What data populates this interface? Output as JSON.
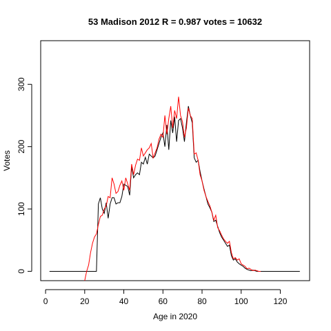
{
  "chart_data": {
    "type": "line",
    "title": "53 Madison 2012 R = 0.987 votes = 10632",
    "xlabel": "Age in 2020",
    "ylabel": "Votes",
    "xlim": [
      -2.5,
      135
    ],
    "ylim": [
      -15,
      370
    ],
    "xticks": [
      0,
      20,
      40,
      60,
      80,
      100,
      120
    ],
    "yticks": [
      0,
      100,
      200,
      300
    ],
    "grid": false,
    "series": [
      {
        "color": "#000000",
        "points": [
          [
            2,
            0
          ],
          [
            26,
            0
          ],
          [
            27,
            108
          ],
          [
            28,
            118
          ],
          [
            29,
            100
          ],
          [
            30,
            93
          ],
          [
            31,
            110
          ],
          [
            32,
            85
          ],
          [
            33,
            108
          ],
          [
            34,
            118
          ],
          [
            35,
            118
          ],
          [
            36,
            108
          ],
          [
            37,
            110
          ],
          [
            38,
            110
          ],
          [
            39,
            120
          ],
          [
            40,
            140
          ],
          [
            41,
            138
          ],
          [
            42,
            136
          ],
          [
            43,
            122
          ],
          [
            44,
            168
          ],
          [
            45,
            150
          ],
          [
            46,
            155
          ],
          [
            47,
            158
          ],
          [
            48,
            155
          ],
          [
            49,
            175
          ],
          [
            50,
            172
          ],
          [
            51,
            183
          ],
          [
            52,
            172
          ],
          [
            53,
            188
          ],
          [
            54,
            185
          ],
          [
            55,
            182
          ],
          [
            56,
            185
          ],
          [
            57,
            195
          ],
          [
            58,
            205
          ],
          [
            59,
            215
          ],
          [
            60,
            222
          ],
          [
            61,
            200
          ],
          [
            62,
            235
          ],
          [
            63,
            195
          ],
          [
            64,
            242
          ],
          [
            65,
            222
          ],
          [
            66,
            248
          ],
          [
            67,
            208
          ],
          [
            68,
            242
          ],
          [
            69,
            245
          ],
          [
            70,
            230
          ],
          [
            71,
            208
          ],
          [
            72,
            238
          ],
          [
            73,
            265
          ],
          [
            74,
            250
          ],
          [
            75,
            238
          ],
          [
            76,
            182
          ],
          [
            77,
            175
          ],
          [
            78,
            178
          ],
          [
            79,
            160
          ],
          [
            80,
            145
          ],
          [
            81,
            132
          ],
          [
            82,
            120
          ],
          [
            83,
            108
          ],
          [
            84,
            102
          ],
          [
            85,
            95
          ],
          [
            86,
            80
          ],
          [
            87,
            82
          ],
          [
            88,
            72
          ],
          [
            89,
            62
          ],
          [
            90,
            55
          ],
          [
            91,
            50
          ],
          [
            92,
            45
          ],
          [
            93,
            40
          ],
          [
            94,
            42
          ],
          [
            95,
            25
          ],
          [
            96,
            18
          ],
          [
            97,
            20
          ],
          [
            98,
            15
          ],
          [
            99,
            12
          ],
          [
            100,
            10
          ],
          [
            101,
            8
          ],
          [
            102,
            5
          ],
          [
            103,
            3
          ],
          [
            104,
            2
          ],
          [
            105,
            1
          ],
          [
            106,
            2
          ],
          [
            107,
            1
          ],
          [
            108,
            0
          ],
          [
            110,
            0
          ],
          [
            130,
            0
          ]
        ]
      },
      {
        "color": "#ff0000",
        "points": [
          [
            20,
            -15
          ],
          [
            21,
            0
          ],
          [
            22,
            10
          ],
          [
            23,
            30
          ],
          [
            24,
            45
          ],
          [
            25,
            55
          ],
          [
            26,
            60
          ],
          [
            27,
            75
          ],
          [
            28,
            88
          ],
          [
            29,
            90
          ],
          [
            30,
            100
          ],
          [
            31,
            105
          ],
          [
            32,
            120
          ],
          [
            33,
            118
          ],
          [
            34,
            150
          ],
          [
            35,
            140
          ],
          [
            36,
            125
          ],
          [
            37,
            128
          ],
          [
            38,
            138
          ],
          [
            39,
            145
          ],
          [
            40,
            130
          ],
          [
            41,
            150
          ],
          [
            42,
            140
          ],
          [
            43,
            130
          ],
          [
            44,
            172
          ],
          [
            45,
            155
          ],
          [
            46,
            170
          ],
          [
            47,
            180
          ],
          [
            48,
            178
          ],
          [
            49,
            198
          ],
          [
            50,
            185
          ],
          [
            51,
            190
          ],
          [
            52,
            195
          ],
          [
            53,
            198
          ],
          [
            54,
            205
          ],
          [
            55,
            182
          ],
          [
            56,
            190
          ],
          [
            57,
            198
          ],
          [
            58,
            212
          ],
          [
            59,
            220
          ],
          [
            60,
            215
          ],
          [
            61,
            250
          ],
          [
            62,
            220
          ],
          [
            63,
            245
          ],
          [
            64,
            265
          ],
          [
            65,
            230
          ],
          [
            66,
            258
          ],
          [
            67,
            245
          ],
          [
            68,
            280
          ],
          [
            69,
            250
          ],
          [
            70,
            240
          ],
          [
            71,
            215
          ],
          [
            72,
            230
          ],
          [
            73,
            262
          ],
          [
            74,
            250
          ],
          [
            75,
            245
          ],
          [
            76,
            188
          ],
          [
            77,
            190
          ],
          [
            78,
            178
          ],
          [
            79,
            155
          ],
          [
            80,
            145
          ],
          [
            81,
            130
          ],
          [
            82,
            120
          ],
          [
            83,
            112
          ],
          [
            84,
            105
          ],
          [
            85,
            95
          ],
          [
            86,
            82
          ],
          [
            87,
            90
          ],
          [
            88,
            70
          ],
          [
            89,
            65
          ],
          [
            90,
            58
          ],
          [
            91,
            52
          ],
          [
            92,
            48
          ],
          [
            93,
            45
          ],
          [
            94,
            48
          ],
          [
            95,
            30
          ],
          [
            96,
            20
          ],
          [
            97,
            22
          ],
          [
            98,
            18
          ],
          [
            99,
            20
          ],
          [
            100,
            12
          ],
          [
            101,
            10
          ],
          [
            102,
            8
          ],
          [
            103,
            4
          ],
          [
            104,
            5
          ],
          [
            105,
            3
          ],
          [
            106,
            1
          ],
          [
            107,
            2
          ],
          [
            108,
            1
          ],
          [
            109,
            0
          ],
          [
            110,
            0
          ]
        ]
      }
    ]
  }
}
